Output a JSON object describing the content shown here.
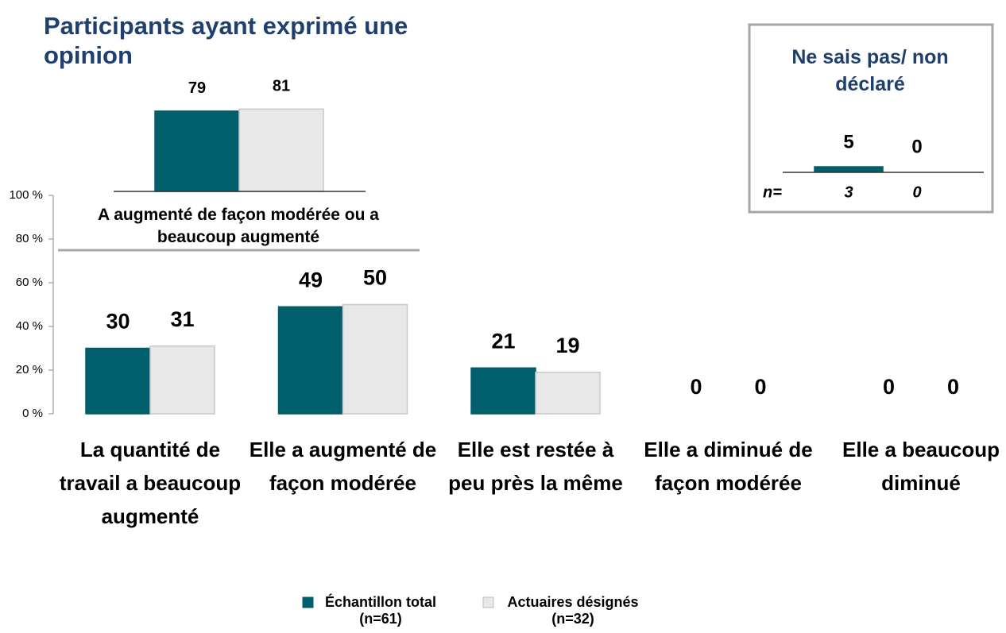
{
  "chart_data": [
    {
      "type": "bar",
      "categories": [
        "La quantité de travail a beaucoup augmenté",
        "Elle a augmenté de façon modérée",
        "Elle est restée à peu près la même",
        "Elle a diminué de façon modérée",
        "Elle a beaucoup diminué"
      ],
      "series": [
        {
          "name": "Échantillon total (n=61)",
          "color": "#005f6b",
          "values": [
            30,
            49,
            21,
            0,
            0
          ]
        },
        {
          "name": "Actuaires désignés (n=32)",
          "color": "#e8e8e8",
          "values": [
            31,
            50,
            19,
            0,
            0
          ]
        }
      ],
      "ylim": [
        0,
        100
      ],
      "yticks": [
        {
          "value": 0,
          "label": "0 %"
        },
        {
          "value": 20,
          "label": "20 %"
        },
        {
          "value": 40,
          "label": "40 %"
        },
        {
          "value": 60,
          "label": "60 %"
        },
        {
          "value": 80,
          "label": "80 %"
        },
        {
          "value": 100,
          "label": "100 %"
        }
      ]
    },
    {
      "type": "bar",
      "title": "Participants ayant exprimé une opinion",
      "categories": [
        "A augmenté de façon modérée ou a beaucoup augmenté"
      ],
      "series": [
        {
          "color": "#005f6b",
          "values": [
            79
          ]
        },
        {
          "color": "#e8e8e8",
          "values": [
            81
          ]
        }
      ],
      "ylim": [
        0,
        100
      ]
    },
    {
      "type": "bar",
      "title": "Ne sais pas/ non déclaré",
      "count_label": "n=",
      "series": [
        {
          "color": "#005f6b",
          "values": [
            5
          ],
          "counts": [
            3
          ]
        },
        {
          "color": "#e8e8e8",
          "values": [
            0
          ],
          "counts": [
            0
          ]
        }
      ],
      "ylim": [
        0,
        100
      ]
    }
  ]
}
